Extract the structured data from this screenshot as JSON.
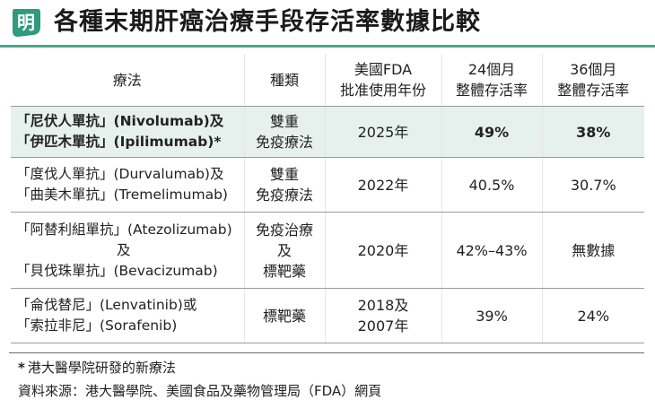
{
  "header": {
    "logo_char": "明",
    "logo_color": "#2f9a7c",
    "title": "各種末期肝癌治療手段存活率數據比較"
  },
  "table": {
    "headers": [
      {
        "lines": [
          "療法"
        ]
      },
      {
        "lines": [
          "種類"
        ]
      },
      {
        "lines": [
          "美國FDA",
          "批准使用年份"
        ]
      },
      {
        "lines": [
          "24個月",
          "整體存活率"
        ]
      },
      {
        "lines": [
          "36個月",
          "整體存活率"
        ]
      }
    ],
    "rows": [
      {
        "highlighted": true,
        "highlight_color": "#e6f0ec",
        "treatment": [
          "「尼伏人單抗」(Nivolumab)及",
          "「伊匹木單抗」(Ipilimumab)*"
        ],
        "type": [
          "雙重",
          "免疫療法"
        ],
        "year": [
          "2025年"
        ],
        "survival_24": "49%",
        "survival_36": "38%"
      },
      {
        "treatment": [
          "「度伐人單抗」(Durvalumab)及",
          "「曲美木單抗」(Tremelimumab)"
        ],
        "type": [
          "雙重",
          "免疫療法"
        ],
        "year": [
          "2022年"
        ],
        "survival_24": "40.5%",
        "survival_36": "30.7%"
      },
      {
        "treatment": [
          "「阿替利組單抗」(Atezolizumab)",
          "及",
          "「貝伐珠單抗」(Bevacizumab)"
        ],
        "type": [
          "免疫治療",
          "及",
          "標靶藥"
        ],
        "year": [
          "2020年"
        ],
        "survival_24": "42%–43%",
        "survival_36": "無數據"
      },
      {
        "treatment": [
          "「侖伐替尼」(Lenvatinib)或",
          "「索拉非尼」(Sorafenib)"
        ],
        "type": [
          "標靶藥"
        ],
        "year": [
          "2018及",
          "2007年"
        ],
        "survival_24": "39%",
        "survival_36": "24%"
      }
    ]
  },
  "footnotes": {
    "star": "*",
    "note": "港大醫學院研發的新療法",
    "source": "資料來源：港大醫學院、美國食品及藥物管理局（FDA）網頁"
  }
}
